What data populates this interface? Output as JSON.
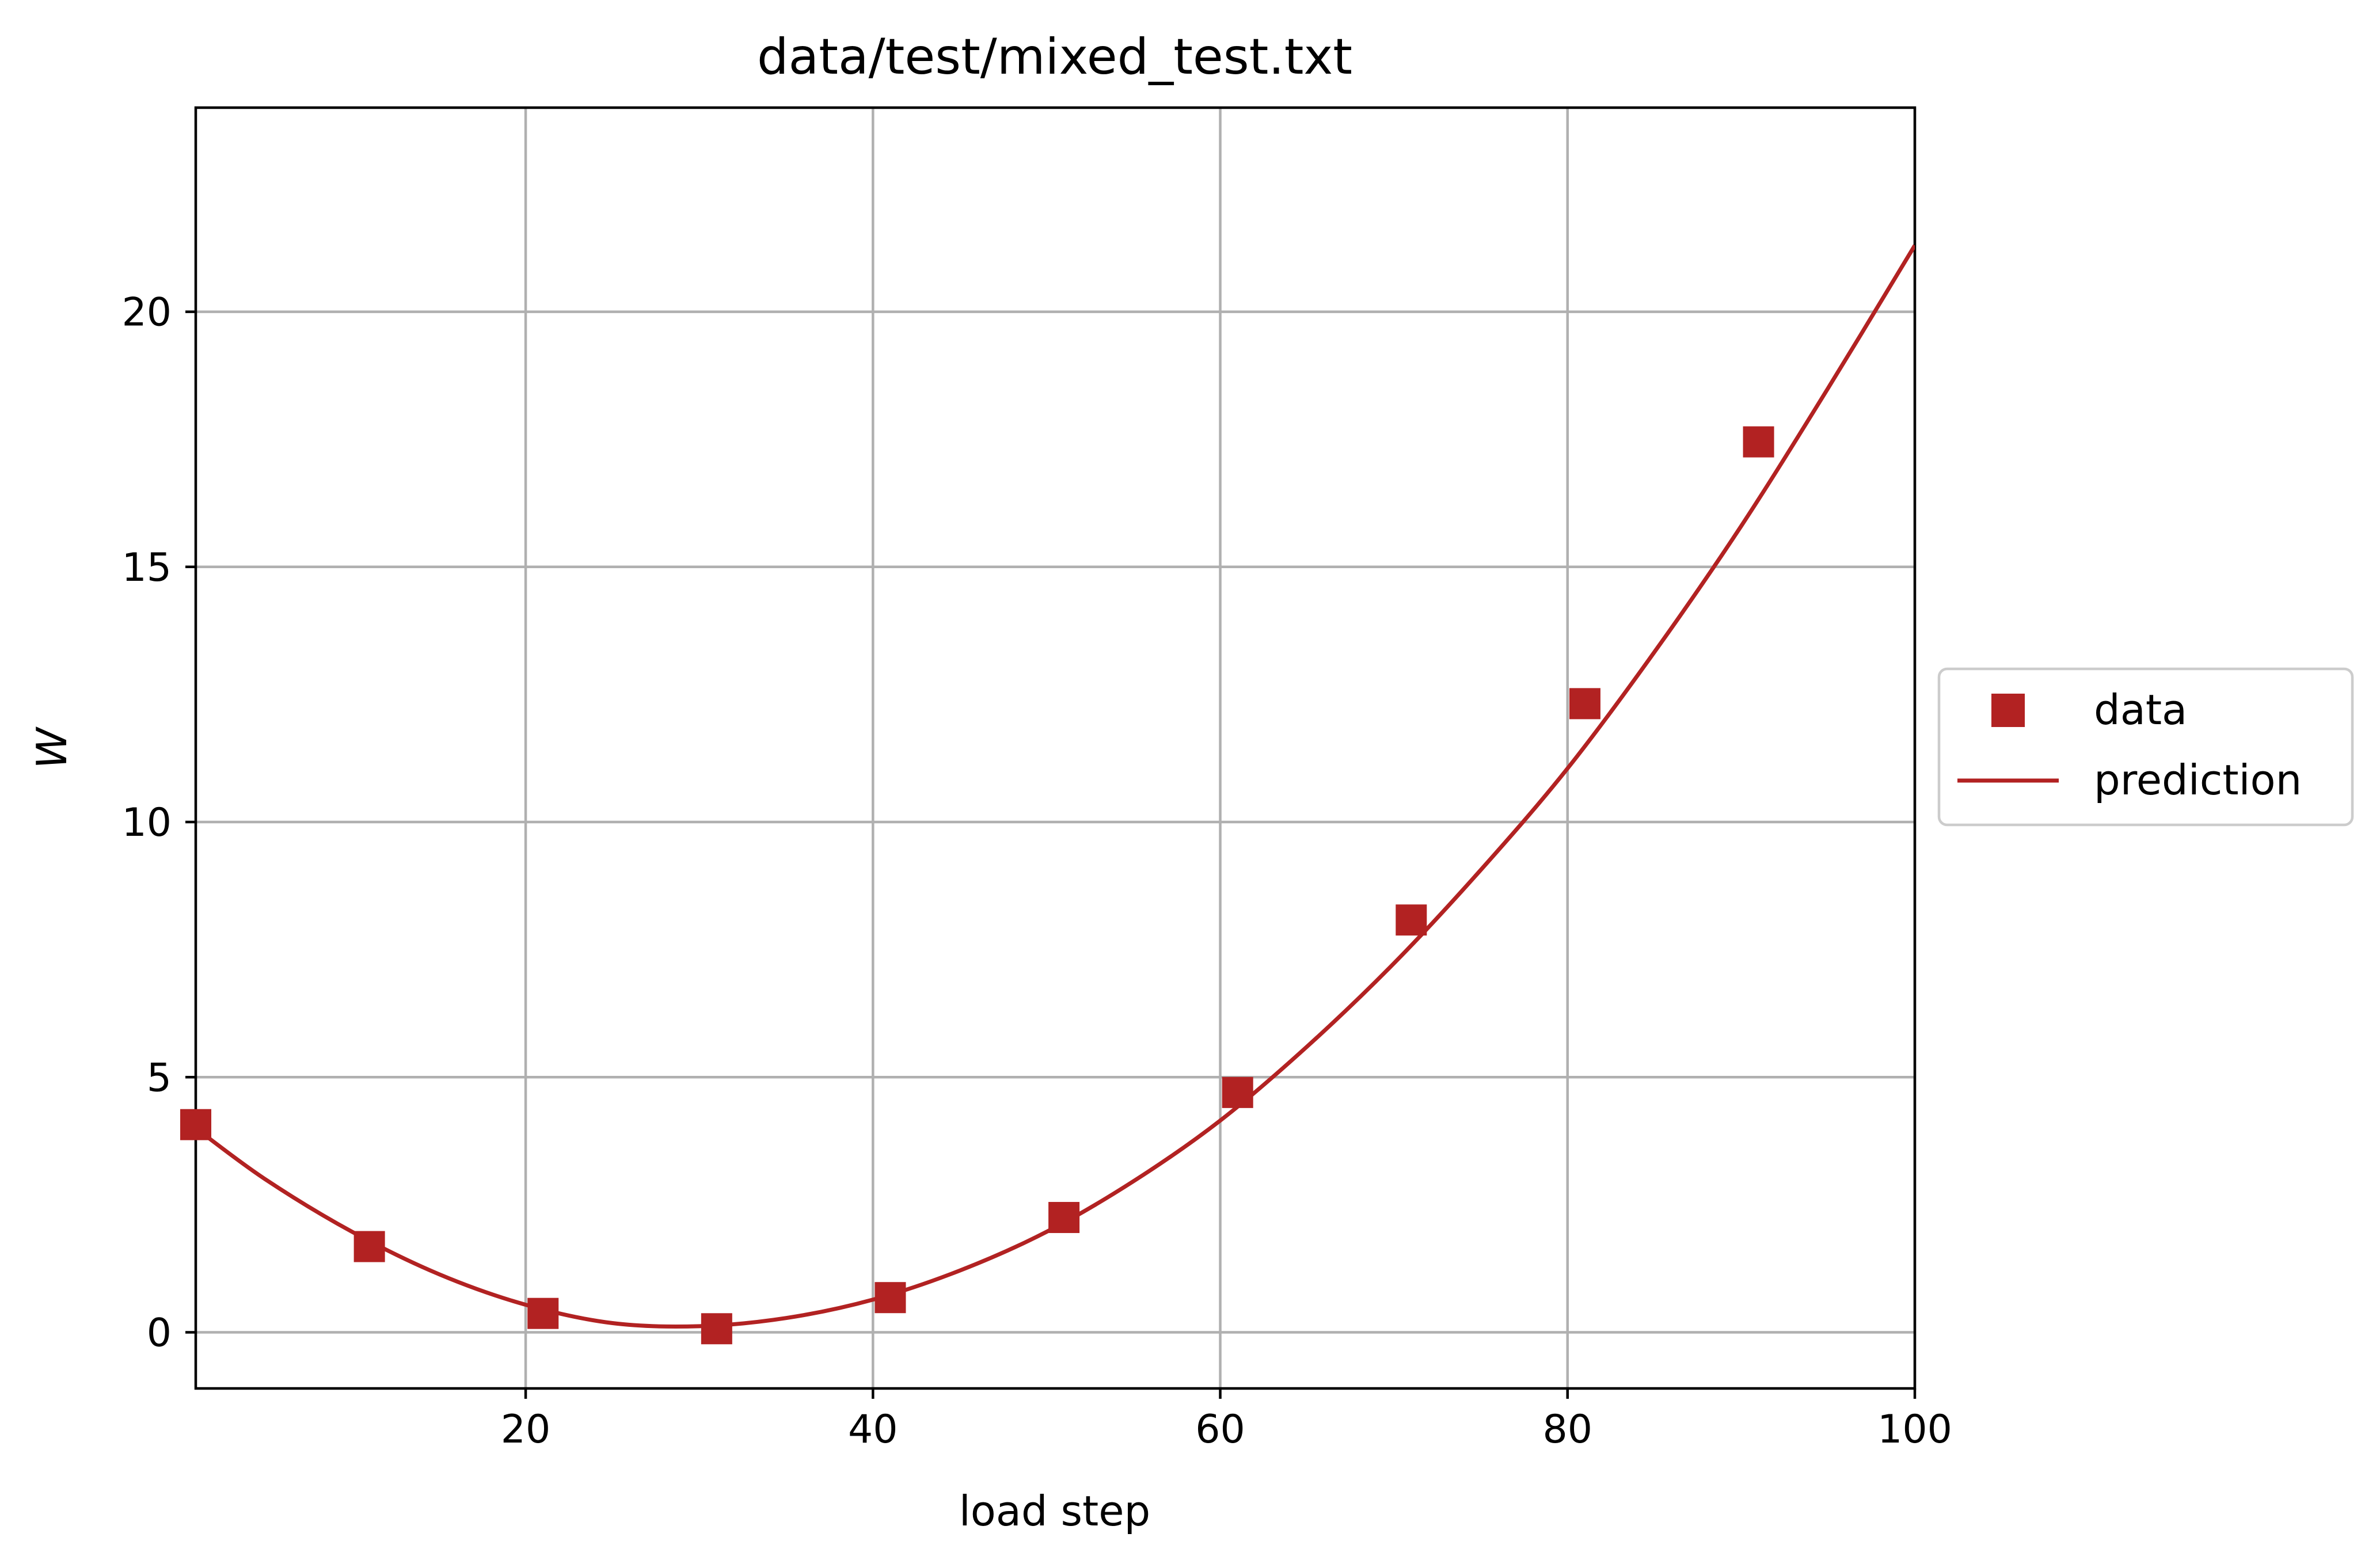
{
  "chart_data": {
    "type": "line",
    "title": "data/test/mixed_test.txt",
    "xlabel": "load step",
    "ylabel": "W",
    "xlim": [
      1,
      100
    ],
    "ylim": [
      -1.1,
      24.0
    ],
    "xticks": [
      20,
      40,
      60,
      80,
      100
    ],
    "yticks": [
      0,
      5,
      10,
      15,
      20
    ],
    "grid": true,
    "legend_position": "center-right-outside",
    "color": "#b22222",
    "series": [
      {
        "name": "data",
        "style": "square-markers",
        "x": [
          1,
          11,
          21,
          31,
          41,
          51,
          61,
          71,
          81,
          91
        ],
        "y": [
          4.07,
          1.68,
          0.37,
          0.07,
          0.68,
          2.25,
          4.7,
          8.08,
          12.32,
          17.45
        ]
      },
      {
        "name": "prediction",
        "style": "line",
        "x": [
          1,
          5,
          10,
          15,
          20,
          25,
          30,
          35,
          40,
          45,
          50,
          55,
          60,
          65,
          70,
          75,
          80,
          85,
          90,
          95,
          100
        ],
        "y": [
          4.0,
          3.0,
          1.97,
          1.14,
          0.54,
          0.18,
          0.12,
          0.28,
          0.64,
          1.21,
          1.97,
          2.96,
          4.15,
          5.6,
          7.23,
          9.06,
          11.05,
          13.33,
          15.8,
          18.5,
          21.3
        ]
      }
    ]
  }
}
